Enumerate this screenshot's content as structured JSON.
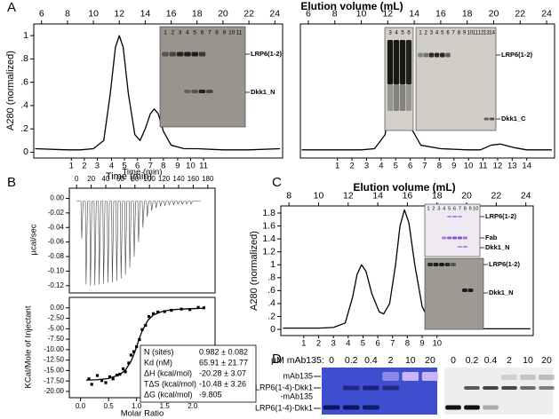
{
  "panel_letters": [
    "A",
    "B",
    "C",
    "D"
  ],
  "chart_data": [
    {
      "type": "line",
      "title": "Elution volume (mL)",
      "xlabel": "Time (min)",
      "ylabel": "A280 (normalized)",
      "xlim": [
        5.4,
        24.6
      ],
      "xticks": [
        6,
        8,
        10,
        12,
        14,
        16,
        18,
        20,
        22,
        24
      ],
      "ylim": [
        -0.05,
        1.1
      ],
      "yticks": [
        0,
        {
          "value": 0.2,
          "label": ".2"
        },
        {
          "value": 0.4,
          "label": ".4"
        },
        {
          "value": 0.6,
          "label": ".6"
        },
        {
          "value": 0.8,
          "label": ".8"
        },
        1
      ],
      "x2ticks": [
        {
          "value": 8.3,
          "label": "1"
        },
        {
          "value": 9.3,
          "label": "2"
        },
        {
          "value": 10.3,
          "label": "3"
        },
        {
          "value": 11.4,
          "label": "4"
        },
        {
          "value": 12.4,
          "label": "5"
        },
        {
          "value": 13.4,
          "label": "6"
        },
        {
          "value": 14.4,
          "label": "7"
        },
        {
          "value": 15.4,
          "label": "8"
        },
        {
          "value": 16.5,
          "label": "9"
        },
        {
          "value": 17.5,
          "label": "10"
        },
        {
          "value": 18.5,
          "label": "11"
        }
      ],
      "series": [
        {
          "color": "#000000",
          "x": [
            5.5,
            8,
            9,
            10,
            10.8,
            11.3,
            11.7,
            12,
            12.3,
            12.7,
            13.2,
            13.6,
            14,
            14.4,
            14.7,
            15,
            15.4,
            16,
            17,
            18,
            20,
            22,
            24.4
          ],
          "values": [
            0.03,
            0.02,
            0.02,
            0.03,
            0.1,
            0.5,
            0.9,
            1.0,
            0.9,
            0.5,
            0.15,
            0.1,
            0.2,
            0.33,
            0.37,
            0.33,
            0.18,
            0.06,
            0.03,
            0.03,
            0.02,
            0.02,
            0.03
          ]
        }
      ]
    },
    {
      "type": "line",
      "xlim": [
        5.4,
        24.6
      ],
      "xticks": [
        6,
        8,
        10,
        12,
        14,
        16,
        18,
        20,
        22,
        24
      ],
      "ylim": [
        -0.05,
        1.1
      ],
      "x2ticks": [
        {
          "value": 8.2,
          "label": "1"
        },
        {
          "value": 9.3,
          "label": "2"
        },
        {
          "value": 10.4,
          "label": "3"
        },
        {
          "value": 11.5,
          "label": "4"
        },
        {
          "value": 12.6,
          "label": "5"
        },
        {
          "value": 13.7,
          "label": "6"
        },
        {
          "value": 14.8,
          "label": "7"
        },
        {
          "value": 15.9,
          "label": "8"
        },
        {
          "value": 17.0,
          "label": "9"
        },
        {
          "value": 18.1,
          "label": "10"
        },
        {
          "value": 19.2,
          "label": "11"
        },
        {
          "value": 20.3,
          "label": "12"
        },
        {
          "value": 21.4,
          "label": "13"
        },
        {
          "value": 22.5,
          "label": "14"
        }
      ],
      "series": [
        {
          "color": "#000000",
          "x": [
            5.5,
            8,
            10,
            11,
            11.8,
            12.3,
            12.6,
            12.8,
            13.0,
            13.3,
            13.8,
            14.5,
            16,
            18,
            19,
            19.8,
            20.5,
            21.5,
            22.5,
            24.4
          ],
          "values": [
            0.02,
            0.02,
            0.02,
            0.03,
            0.15,
            0.55,
            0.9,
            0.97,
            0.9,
            0.55,
            0.2,
            0.06,
            0.03,
            0.02,
            0.02,
            0.06,
            0.07,
            0.04,
            0.02,
            0.02
          ]
        }
      ]
    },
    {
      "type": "line",
      "xlabel": "Time (min)",
      "ylabel": "µcal/sec",
      "xlim": [
        -10,
        190
      ],
      "xticks": [
        0,
        20,
        40,
        60,
        80,
        100,
        120,
        140,
        160,
        180
      ],
      "ylim": [
        -0.13,
        0.014
      ],
      "yticks": [
        {
          "value": 0,
          "label": "0.00"
        },
        -0.02,
        -0.04,
        -0.06,
        -0.08,
        {
          "value": -0.1,
          "label": "-0.10"
        },
        -0.12
      ],
      "series": [
        {
          "color": "#444444",
          "x": [
            0,
            6,
            7,
            9,
            12,
            13,
            15,
            18,
            19,
            21,
            24,
            25,
            27,
            30,
            31,
            33,
            36,
            37,
            39,
            42,
            43,
            45,
            48,
            49,
            51,
            54,
            55,
            57,
            60,
            61,
            63,
            66,
            67,
            69,
            72,
            73,
            75,
            78,
            79,
            81,
            84,
            85,
            87,
            90,
            91,
            93,
            96,
            97,
            99,
            102,
            103,
            105,
            108,
            109,
            111,
            114,
            115,
            117,
            120,
            121,
            123,
            126,
            127,
            129,
            132,
            133,
            135,
            138,
            139,
            141,
            144,
            145,
            147,
            150,
            151,
            153,
            156,
            157,
            159,
            170
          ],
          "values": [
            -0.004,
            -0.004,
            -0.055,
            -0.004,
            -0.004,
            -0.118,
            -0.004,
            -0.004,
            -0.12,
            -0.004,
            -0.004,
            -0.119,
            -0.004,
            -0.004,
            -0.118,
            -0.004,
            -0.004,
            -0.117,
            -0.004,
            -0.004,
            -0.116,
            -0.004,
            -0.004,
            -0.115,
            -0.004,
            -0.004,
            -0.113,
            -0.004,
            -0.004,
            -0.11,
            -0.004,
            -0.004,
            -0.105,
            -0.004,
            -0.004,
            -0.095,
            -0.004,
            -0.004,
            -0.08,
            -0.004,
            -0.004,
            -0.06,
            -0.004,
            -0.004,
            -0.04,
            -0.004,
            -0.004,
            -0.025,
            -0.004,
            -0.004,
            -0.017,
            -0.004,
            -0.004,
            -0.013,
            -0.004,
            -0.004,
            -0.011,
            -0.004,
            -0.004,
            -0.01,
            -0.004,
            -0.004,
            -0.009,
            -0.004,
            -0.004,
            -0.009,
            -0.004,
            -0.004,
            -0.008,
            -0.004,
            -0.004,
            -0.008,
            -0.004,
            -0.004,
            -0.008,
            -0.004,
            -0.004,
            -0.008,
            -0.004,
            -0.004
          ]
        }
      ]
    },
    {
      "type": "scatter",
      "xlabel": "Molar Ratio",
      "ylabel": "KCal/Mole of Injectant",
      "xlim": [
        -0.2,
        2.4
      ],
      "xticks": [
        {
          "value": 0,
          "label": "0.0"
        },
        0.5,
        {
          "value": 1,
          "label": "1.0"
        },
        1.5,
        {
          "value": 2,
          "label": "2.0"
        }
      ],
      "ylim": [
        -21.5,
        2.5
      ],
      "yticks": [
        {
          "value": 0,
          "label": "0.00"
        },
        {
          "value": -2.5,
          "label": "-2.50"
        },
        {
          "value": -5,
          "label": "-5.00"
        },
        {
          "value": -7.5,
          "label": "-7.50"
        },
        {
          "value": -10,
          "label": "-10.00"
        },
        {
          "value": -12.5,
          "label": "-12.50"
        },
        {
          "value": -15,
          "label": "-15.00"
        },
        {
          "value": -17.5,
          "label": "-17.50"
        },
        {
          "value": -20,
          "label": "-20.00"
        }
      ],
      "series": [
        {
          "type": "scatter",
          "color": "#000000",
          "x": [
            0.15,
            0.2,
            0.3,
            0.38,
            0.45,
            0.52,
            0.58,
            0.65,
            0.7,
            0.76,
            0.8,
            0.86,
            0.9,
            0.95,
            1.0,
            1.05,
            1.1,
            1.16,
            1.22,
            1.3,
            1.38,
            1.5,
            1.62,
            1.8,
            1.95,
            2.1,
            2.2
          ],
          "values": [
            -17.0,
            -18.3,
            -16.2,
            -17.4,
            -17.9,
            -16.5,
            -17.0,
            -16.1,
            -15.9,
            -14.6,
            -15.3,
            -13.2,
            -11.3,
            -10.5,
            -9.3,
            -7.6,
            -5.2,
            -4.2,
            -2.1,
            -1.4,
            -1.0,
            -0.9,
            -0.6,
            -0.3,
            -0.4,
            0.1,
            0.0
          ]
        },
        {
          "type": "line",
          "color": "#000000",
          "x": [
            0.1,
            0.3,
            0.5,
            0.7,
            0.8,
            0.9,
            0.95,
            1.0,
            1.05,
            1.1,
            1.2,
            1.3,
            1.45,
            1.6,
            1.8,
            2.0,
            2.2
          ],
          "values": [
            -17.3,
            -17.2,
            -16.9,
            -16.0,
            -14.9,
            -12.8,
            -11.2,
            -9.3,
            -7.3,
            -5.5,
            -3.0,
            -1.7,
            -0.9,
            -0.5,
            -0.3,
            -0.2,
            -0.1
          ]
        }
      ]
    },
    {
      "type": "line",
      "title": "Elution volume (mL)",
      "ylabel": "A280 (normalized)",
      "xlim": [
        7.45,
        24.5
      ],
      "xticks": [
        8,
        10,
        12,
        14,
        16,
        18,
        20,
        22,
        24
      ],
      "ylim": [
        -0.095,
        1.91
      ],
      "yticks": [
        0,
        {
          "value": 0.2,
          "label": ".2"
        },
        {
          "value": 0.4,
          "label": ".4"
        },
        {
          "value": 0.6,
          "label": ".6"
        },
        {
          "value": 0.8,
          "label": ".8"
        },
        1,
        1.2,
        1.4,
        1.6,
        1.8
      ],
      "x2ticks": [
        {
          "value": 9,
          "label": "1"
        },
        {
          "value": 10,
          "label": "2"
        },
        {
          "value": 11,
          "label": "3"
        },
        {
          "value": 12,
          "label": "4"
        },
        {
          "value": 13,
          "label": "5"
        },
        {
          "value": 14,
          "label": "6"
        },
        {
          "value": 15,
          "label": "7"
        },
        {
          "value": 16,
          "label": "8"
        },
        {
          "value": 17,
          "label": "9"
        },
        {
          "value": 18,
          "label": "10"
        }
      ],
      "series": [
        {
          "color": "#000000",
          "x": [
            7.6,
            10,
            11,
            11.8,
            12.3,
            12.6,
            12.9,
            13.2,
            13.6,
            14.1,
            14.4,
            14.8,
            15.2,
            15.5,
            15.8,
            16.1,
            16.5,
            17,
            17.6,
            18.5,
            20,
            22,
            24.3
          ],
          "values": [
            0.02,
            0.02,
            0.03,
            0.1,
            0.5,
            0.85,
            1.0,
            0.9,
            0.55,
            0.27,
            0.24,
            0.4,
            1.0,
            1.6,
            1.85,
            1.65,
            1.0,
            0.35,
            0.08,
            0.02,
            0.01,
            0.01,
            0.01
          ]
        }
      ]
    }
  ],
  "gels": [
    {
      "lanes": [
        "1",
        "2",
        "3",
        "4",
        "5",
        "6",
        "7",
        "8",
        "9",
        "10",
        "11"
      ],
      "labels": [
        "LRP6(1-2)",
        "Dkk1_N"
      ]
    },
    {
      "lanes": [
        "3",
        "4",
        "5",
        "6"
      ]
    },
    {
      "lanes": [
        "1",
        "2",
        "3",
        "4",
        "5",
        "6",
        "7",
        "8",
        "9",
        "10",
        "11",
        "12",
        "13",
        "14"
      ],
      "labels": [
        "LRP6(1-2)",
        "Dkk1_C"
      ]
    },
    {
      "lanes": [
        "1",
        "2",
        "3",
        "4",
        "5",
        "6",
        "7",
        "8",
        "9",
        "10"
      ],
      "labels": [
        "LRP6(1-2)",
        "Fab",
        "Dkk1_N"
      ]
    },
    {
      "labels": [
        "LRP6(1-2)",
        "Dkk1_N"
      ]
    }
  ],
  "fit_table": {
    "rows": [
      [
        "N (sites)",
        "0.982 ± 0.082"
      ],
      [
        "Kd (nM)",
        "65.91 ± 21.77"
      ],
      [
        "ΔH (kcal/mol)",
        "-20.28 ± 3.07"
      ],
      [
        "TΔS (kcal/mol)",
        "-10.48 ± 3.26"
      ],
      [
        "ΔG (kcal/mol)",
        "-9.805"
      ]
    ]
  },
  "panel_d": {
    "header": "µM mAb135:",
    "concentrations": [
      [
        0,
        0.2,
        0.4,
        2,
        10,
        20
      ],
      [
        0,
        0.2,
        0.4,
        2,
        10,
        20
      ]
    ],
    "labels": [
      "mAb135",
      "LRP6(1-4)-Dkk1",
      "-mAb135",
      "LRP6(1-4)-Dkk1"
    ]
  }
}
